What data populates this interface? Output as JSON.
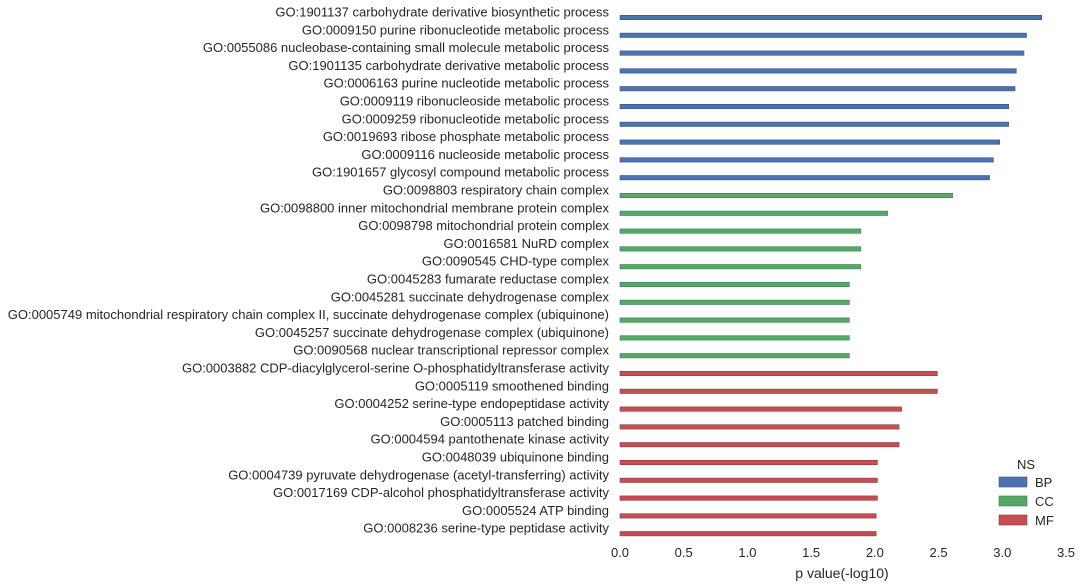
{
  "chart_data": {
    "type": "bar",
    "orientation": "horizontal",
    "xlabel": "p value(-log10)",
    "ylabel": "",
    "xlim": [
      0,
      3.5
    ],
    "xticks": [
      "0.0",
      "0.5",
      "1.0",
      "1.5",
      "2.0",
      "2.5",
      "3.0",
      "3.5"
    ],
    "grid": false,
    "legend": {
      "title": "NS",
      "placement": "bottom-right",
      "entries": [
        "BP",
        "CC",
        "MF"
      ]
    },
    "series_colors": {
      "BP": "#4C72B0",
      "CC": "#55A868",
      "MF": "#C44E52"
    },
    "bars": [
      {
        "label": "GO:1901137 carbohydrate derivative biosynthetic process",
        "value": 3.31,
        "ns": "BP"
      },
      {
        "label": "GO:0009150 purine ribonucleotide metabolic process",
        "value": 3.19,
        "ns": "BP"
      },
      {
        "label": "GO:0055086 nucleobase-containing small molecule metabolic process",
        "value": 3.17,
        "ns": "BP"
      },
      {
        "label": "GO:1901135 carbohydrate derivative metabolic process",
        "value": 3.11,
        "ns": "BP"
      },
      {
        "label": "GO:0006163 purine nucleotide metabolic process",
        "value": 3.1,
        "ns": "BP"
      },
      {
        "label": "GO:0009119 ribonucleoside metabolic process",
        "value": 3.05,
        "ns": "BP"
      },
      {
        "label": "GO:0009259 ribonucleotide metabolic process",
        "value": 3.05,
        "ns": "BP"
      },
      {
        "label": "GO:0019693 ribose phosphate metabolic process",
        "value": 2.98,
        "ns": "BP"
      },
      {
        "label": "GO:0009116 nucleoside metabolic process",
        "value": 2.93,
        "ns": "BP"
      },
      {
        "label": "GO:1901657 glycosyl compound metabolic process",
        "value": 2.9,
        "ns": "BP"
      },
      {
        "label": "GO:0098803 respiratory chain complex",
        "value": 2.61,
        "ns": "CC"
      },
      {
        "label": "GO:0098800 inner mitochondrial membrane protein complex",
        "value": 2.1,
        "ns": "CC"
      },
      {
        "label": "GO:0098798 mitochondrial protein complex",
        "value": 1.89,
        "ns": "CC"
      },
      {
        "label": "GO:0016581 NuRD complex",
        "value": 1.89,
        "ns": "CC"
      },
      {
        "label": "GO:0090545 CHD-type complex",
        "value": 1.89,
        "ns": "CC"
      },
      {
        "label": "GO:0045283 fumarate reductase complex",
        "value": 1.8,
        "ns": "CC"
      },
      {
        "label": "GO:0045281 succinate dehydrogenase complex",
        "value": 1.8,
        "ns": "CC"
      },
      {
        "label": "GO:0005749 mitochondrial respiratory chain complex II, succinate dehydrogenase complex (ubiquinone)",
        "value": 1.8,
        "ns": "CC"
      },
      {
        "label": "GO:0045257 succinate dehydrogenase complex (ubiquinone)",
        "value": 1.8,
        "ns": "CC"
      },
      {
        "label": "GO:0090568 nuclear transcriptional repressor complex",
        "value": 1.8,
        "ns": "CC"
      },
      {
        "label": "GO:0003882 CDP-diacylglycerol-serine O-phosphatidyltransferase activity",
        "value": 2.49,
        "ns": "MF"
      },
      {
        "label": "GO:0005119 smoothened binding",
        "value": 2.49,
        "ns": "MF"
      },
      {
        "label": "GO:0004252 serine-type endopeptidase activity",
        "value": 2.21,
        "ns": "MF"
      },
      {
        "label": "GO:0005113 patched binding",
        "value": 2.19,
        "ns": "MF"
      },
      {
        "label": "GO:0004594 pantothenate kinase activity",
        "value": 2.19,
        "ns": "MF"
      },
      {
        "label": "GO:0048039 ubiquinone binding",
        "value": 2.02,
        "ns": "MF"
      },
      {
        "label": "GO:0004739 pyruvate dehydrogenase (acetyl-transferring) activity",
        "value": 2.02,
        "ns": "MF"
      },
      {
        "label": "GO:0017169 CDP-alcohol phosphatidyltransferase activity",
        "value": 2.02,
        "ns": "MF"
      },
      {
        "label": "GO:0005524 ATP binding",
        "value": 2.01,
        "ns": "MF"
      },
      {
        "label": "GO:0008236 serine-type peptidase activity",
        "value": 2.01,
        "ns": "MF"
      }
    ]
  }
}
